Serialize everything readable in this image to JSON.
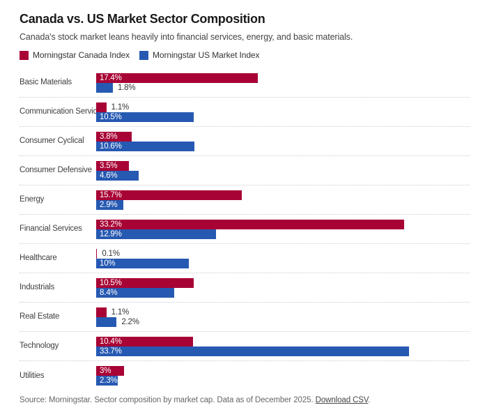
{
  "header": {
    "title": "Canada vs. US Market Sector Composition",
    "subtitle": "Canada's stock market leans heavily into financial services, energy, and basic materials."
  },
  "chart_data": {
    "type": "bar",
    "orientation": "horizontal",
    "title": "Canada vs. US Market Sector Composition",
    "categories": [
      "Basic Materials",
      "Communication Services",
      "Consumer Cyclical",
      "Consumer Defensive",
      "Energy",
      "Financial Services",
      "Healthcare",
      "Industrials",
      "Real Estate",
      "Technology",
      "Utilities"
    ],
    "series": [
      {
        "name": "Morningstar Canada Index",
        "color": "#a80335",
        "values": [
          17.4,
          1.1,
          3.8,
          3.5,
          15.7,
          33.2,
          0.1,
          10.5,
          1.1,
          10.4,
          3
        ],
        "labels": [
          "17.4%",
          "1.1%",
          "3.8%",
          "3.5%",
          "15.7%",
          "33.2%",
          "0.1%",
          "10.5%",
          "1.1%",
          "10.4%",
          "3%"
        ]
      },
      {
        "name": "Morningstar US Market Index",
        "color": "#2659b2",
        "values": [
          1.8,
          10.5,
          10.6,
          4.6,
          2.9,
          12.9,
          10,
          8.4,
          2.2,
          33.7,
          2.3
        ],
        "labels": [
          "1.8%",
          "10.5%",
          "10.6%",
          "4.6%",
          "2.9%",
          "12.9%",
          "10%",
          "8.4%",
          "2.2%",
          "33.7%",
          "2.3%"
        ]
      }
    ],
    "xlim": [
      0,
      40
    ],
    "grid": false,
    "legend_position": "top",
    "value_labels": "on-bars",
    "row_separators": "dotted"
  },
  "footer": {
    "prefix": "Source: Morningstar. Sector composition by market cap. Data as of December 2025. ",
    "link_label": "Download CSV",
    "suffix": "."
  }
}
